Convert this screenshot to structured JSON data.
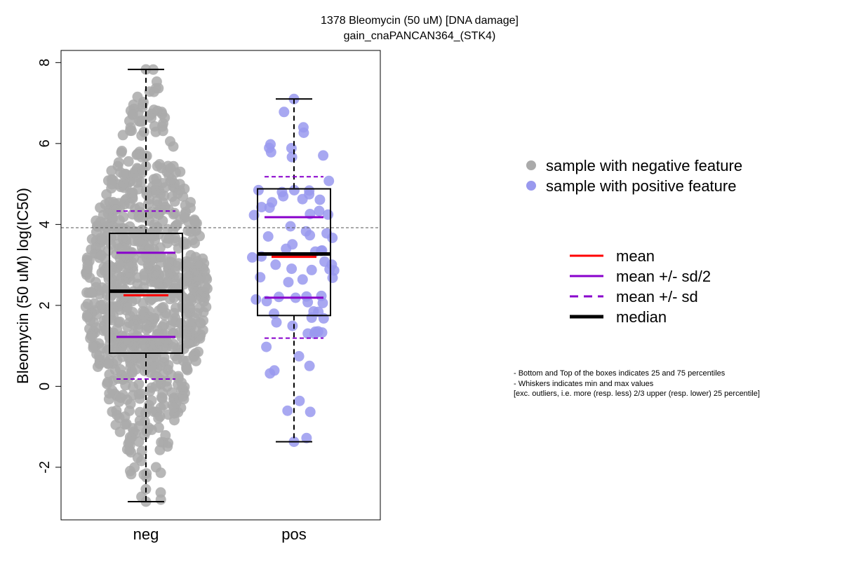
{
  "chart_data": {
    "type": "boxplot-beeswarm",
    "title_line1": "1378 Bleomycin (50 uM) [DNA damage]",
    "title_line2": "gain_cnaPANCAN364_(STK4)",
    "ylabel": "Bleomycin (50 uM) log(IC50)",
    "xlabel": "",
    "ylim": [
      -3.3,
      8.3
    ],
    "yticks": [
      -2,
      0,
      2,
      4,
      6,
      8
    ],
    "categories": [
      "neg",
      "pos"
    ],
    "reference_line": 3.92,
    "groups": [
      {
        "name": "neg",
        "legend": "sample with negative feature",
        "color": "#aaaaaa",
        "n_points": 900,
        "min": -2.85,
        "q1": 0.82,
        "median": 2.35,
        "q3": 3.78,
        "max": 7.83,
        "mean": 2.25,
        "mean_minus_half_sd": 1.22,
        "mean_plus_half_sd": 3.3,
        "mean_minus_sd": 0.18,
        "mean_plus_sd": 4.33
      },
      {
        "name": "pos",
        "legend": "sample with positive feature",
        "color": "#9999ee",
        "n_points": 80,
        "min": -1.37,
        "q1": 1.75,
        "median": 3.27,
        "q3": 4.88,
        "max": 7.1,
        "mean": 3.2,
        "mean_minus_half_sd": 2.19,
        "mean_plus_half_sd": 4.18,
        "mean_minus_sd": 1.19,
        "mean_plus_sd": 5.18
      }
    ],
    "stat_legend": [
      {
        "label": "mean",
        "color": "#ff0000",
        "style": "solid"
      },
      {
        "label": "mean +/- sd/2",
        "color": "#8800cc",
        "style": "solid"
      },
      {
        "label": "mean +/- sd",
        "color": "#8800cc",
        "style": "dashed"
      },
      {
        "label": "median",
        "color": "#000000",
        "style": "thick"
      }
    ],
    "footnote": [
      "- Bottom and Top of the boxes indicates 25 and 75 percentiles",
      "- Whiskers indicates min and max values",
      "[exc. outliers, i.e. more (resp. less) 2/3 upper (resp. lower) 25 percentile]"
    ]
  }
}
